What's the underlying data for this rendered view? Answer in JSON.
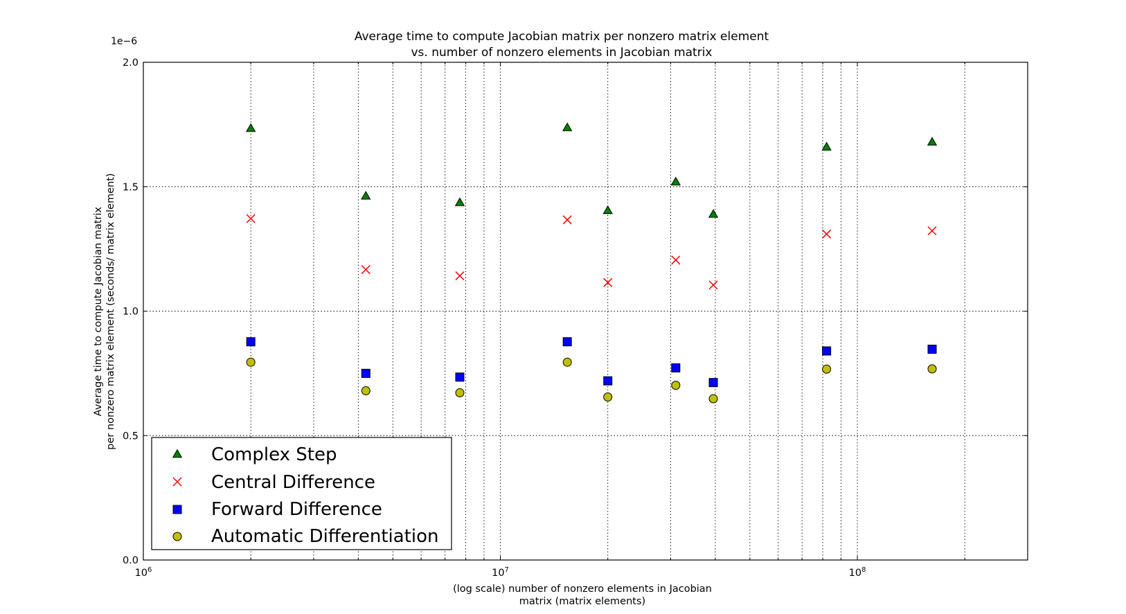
{
  "chart_data": {
    "type": "scatter",
    "title_lines": [
      "Average time to compute Jacobian matrix per nonzero matrix element",
      "vs. number of nonzero elements in Jacobian matrix"
    ],
    "xlabel_lines": [
      "(log scale) number of nonzero elements in Jacobian",
      "matrix (matrix elements)"
    ],
    "ylabel_lines": [
      "Average time to compute Jacobian matrix",
      "per nonzero matrix element (seconds/ matrix element)"
    ],
    "y_offset_label": "1e−6",
    "x_scale": "log",
    "xlim": [
      1000000,
      300000000
    ],
    "ylim": [
      0,
      2.0
    ],
    "x_ticks": [
      {
        "value": 1000000,
        "base": "10",
        "exp": "6"
      },
      {
        "value": 10000000,
        "base": "10",
        "exp": "7"
      },
      {
        "value": 100000000,
        "base": "10",
        "exp": "8"
      }
    ],
    "y_ticks": [
      "0.0",
      "0.5",
      "1.0",
      "1.5",
      "2.0"
    ],
    "grid": true,
    "legend_position": "lower-left",
    "x": [
      2000000,
      4200000,
      7700000,
      15400000,
      20000000,
      31000000,
      39500000,
      82000000,
      162000000
    ],
    "series": [
      {
        "name": "Complex Step",
        "marker": "triangle",
        "color": "#008000",
        "values": [
          1.735,
          1.463,
          1.437,
          1.738,
          1.405,
          1.52,
          1.39,
          1.66,
          1.68
        ]
      },
      {
        "name": "Central Difference",
        "marker": "x",
        "color": "#ff0000",
        "values": [
          1.372,
          1.167,
          1.142,
          1.367,
          1.115,
          1.205,
          1.105,
          1.31,
          1.323
        ]
      },
      {
        "name": "Forward Difference",
        "marker": "square",
        "color": "#0000ff",
        "values": [
          0.877,
          0.75,
          0.735,
          0.877,
          0.72,
          0.772,
          0.713,
          0.84,
          0.847
        ]
      },
      {
        "name": "Automatic Differentiation",
        "marker": "circle",
        "color": "#bfbf00",
        "values": [
          0.795,
          0.68,
          0.672,
          0.795,
          0.655,
          0.702,
          0.648,
          0.767,
          0.768
        ]
      }
    ]
  }
}
